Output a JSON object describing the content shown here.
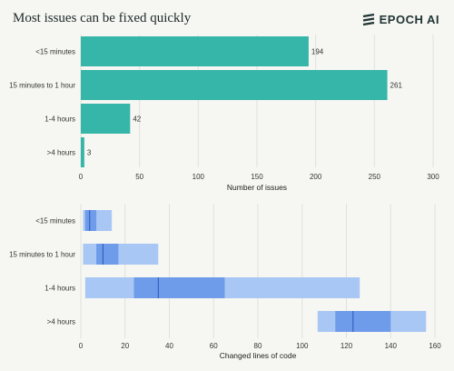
{
  "header": {
    "title": "Most issues can be fixed quickly",
    "brand": "EPOCH AI"
  },
  "colors": {
    "bar": "#35b6a9",
    "grid": "#e2e2dc",
    "range_outer": "#a9c7f4",
    "range_inner": "#6e9cea",
    "median": "#2f55b8"
  },
  "icons": {
    "brand_logo": "epoch-logo-icon"
  },
  "chart_data": [
    {
      "type": "bar",
      "orientation": "horizontal",
      "categories": [
        "<15 minutes",
        "15 minutes to 1 hour",
        "1-4 hours",
        ">4 hours"
      ],
      "values": [
        194,
        261,
        42,
        3
      ],
      "data_labels": [
        "194",
        "261",
        "42",
        "3"
      ],
      "xlabel": "Number of issues",
      "xlim": [
        0,
        300
      ],
      "xticks": [
        0,
        50,
        100,
        150,
        200,
        250,
        300
      ],
      "xtick_labels": [
        "0",
        "50",
        "100",
        "150",
        "200",
        "250",
        "300"
      ],
      "grid": true
    },
    {
      "type": "range",
      "orientation": "horizontal",
      "categories": [
        "<15 minutes",
        "15 minutes to 1 hour",
        "1-4 hours",
        ">4 hours"
      ],
      "ranges": [
        {
          "outer": [
            1,
            14
          ],
          "inner": [
            2,
            7
          ],
          "median": 4
        },
        {
          "outer": [
            1,
            35
          ],
          "inner": [
            7,
            17
          ],
          "median": 10
        },
        {
          "outer": [
            2,
            126
          ],
          "inner": [
            24,
            65
          ],
          "median": 35
        },
        {
          "outer": [
            107,
            156
          ],
          "inner": [
            115,
            140
          ],
          "median": 123
        }
      ],
      "xlabel": "Changed lines of code",
      "xlim": [
        0,
        160
      ],
      "xticks": [
        0,
        20,
        40,
        60,
        80,
        100,
        120,
        140,
        160
      ],
      "xtick_labels": [
        "0",
        "20",
        "40",
        "60",
        "80",
        "100",
        "120",
        "140",
        "160"
      ],
      "grid": true
    }
  ]
}
